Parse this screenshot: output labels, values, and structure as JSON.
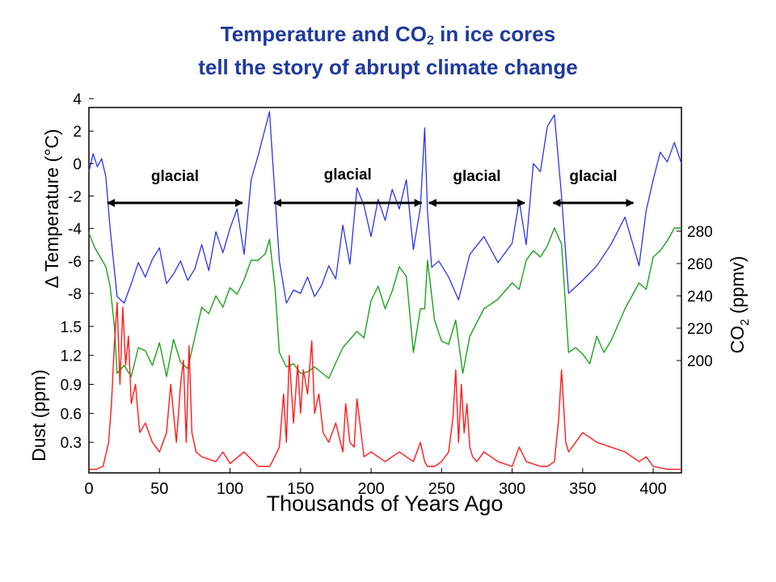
{
  "title": {
    "line1_prefix": "Temperature and CO",
    "line1_sub": "2",
    "line1_suffix": " in ice cores",
    "line2": "tell the story of abrupt climate change"
  },
  "chart_data": {
    "type": "line",
    "xlabel": "Thousands of Years Ago",
    "x_ticks": [
      0,
      50,
      100,
      150,
      200,
      250,
      300,
      350,
      400
    ],
    "xlim": [
      0,
      420
    ],
    "grid": false,
    "colors": {
      "temperature": "#2a35e8",
      "co2": "#1aa31a",
      "dust": "#ff1a1a",
      "title": "#1f3a9e",
      "arrows": "#000000"
    },
    "panels": {
      "temperature": {
        "ylabel": "Δ Temperature (°C)",
        "y_ticks": [
          4,
          2,
          0,
          -2,
          -4,
          -6,
          -8
        ],
        "ylim": [
          -9,
          4
        ],
        "axis_side": "left"
      },
      "co2": {
        "ylabel_main": "CO",
        "ylabel_sub": "2",
        "ylabel_unit": " (ppmv)",
        "y_ticks": [
          280,
          260,
          240,
          220,
          200
        ],
        "ylim": [
          180,
          290
        ],
        "axis_side": "right"
      },
      "dust": {
        "ylabel": "Dust (ppm)",
        "y_ticks": [
          1.5,
          1.2,
          0.9,
          0.6,
          0.3
        ],
        "ylim": [
          0,
          1.8
        ],
        "axis_side": "left"
      }
    },
    "annotations": [
      {
        "text": "glacial",
        "x_start": 12,
        "x_end": 110
      },
      {
        "text": "glacial",
        "x_start": 130,
        "x_end": 237
      },
      {
        "text": "glacial",
        "x_start": 240,
        "x_end": 310
      },
      {
        "text": "glacial",
        "x_start": 328,
        "x_end": 387
      }
    ],
    "series": [
      {
        "name": "Δ Temperature (°C)",
        "key": "temperature",
        "panel": "temperature",
        "x": [
          0,
          3,
          6,
          9,
          12,
          15,
          20,
          25,
          30,
          35,
          40,
          45,
          50,
          55,
          60,
          65,
          70,
          75,
          80,
          85,
          90,
          95,
          100,
          105,
          110,
          115,
          120,
          125,
          128,
          130,
          135,
          140,
          145,
          150,
          155,
          160,
          165,
          170,
          175,
          180,
          185,
          190,
          195,
          200,
          205,
          210,
          215,
          220,
          225,
          230,
          235,
          238,
          240,
          243,
          248,
          255,
          262,
          270,
          280,
          290,
          300,
          305,
          310,
          315,
          320,
          325,
          330,
          335,
          340,
          350,
          360,
          370,
          380,
          390,
          395,
          400,
          405,
          410,
          415,
          420
        ],
        "y": [
          -0.5,
          0.6,
          -0.2,
          0.3,
          -0.8,
          -4,
          -8.2,
          -8.6,
          -7.4,
          -6.1,
          -7.0,
          -5.9,
          -5.2,
          -7.4,
          -6.8,
          -6.0,
          -7.2,
          -6.5,
          -5.0,
          -6.6,
          -4.2,
          -5.5,
          -4.0,
          -2.8,
          -5.6,
          -1.0,
          0.5,
          2.2,
          3.2,
          0.5,
          -6.0,
          -8.6,
          -7.8,
          -8.0,
          -7.0,
          -8.2,
          -7.5,
          -6.3,
          -7.1,
          -3.8,
          -6.2,
          -1.5,
          -2.6,
          -4.5,
          -2.2,
          -3.5,
          -1.6,
          -2.8,
          -1.0,
          -5.3,
          -2.7,
          2.2,
          -3.0,
          -6.4,
          -6.0,
          -7.0,
          -8.4,
          -5.6,
          -4.5,
          -6.1,
          -4.9,
          -2.3,
          -5.0,
          0.0,
          -0.5,
          2.3,
          3.0,
          -2.0,
          -8.0,
          -7.2,
          -6.3,
          -5.0,
          -3.3,
          -6.3,
          -2.9,
          -1.0,
          0.7,
          0.1,
          1.3,
          0.0
        ]
      },
      {
        "name": "CO₂ (ppmv)",
        "key": "co2",
        "panel": "co2",
        "x": [
          0,
          4,
          8,
          12,
          15,
          18,
          20,
          25,
          30,
          35,
          40,
          45,
          50,
          55,
          60,
          65,
          70,
          75,
          80,
          85,
          90,
          95,
          100,
          105,
          110,
          115,
          120,
          125,
          128,
          132,
          135,
          140,
          145,
          150,
          155,
          160,
          170,
          180,
          190,
          195,
          200,
          205,
          210,
          215,
          220,
          225,
          230,
          235,
          238,
          240,
          245,
          250,
          255,
          260,
          265,
          270,
          280,
          290,
          300,
          305,
          310,
          315,
          320,
          325,
          330,
          335,
          340,
          345,
          350,
          355,
          360,
          365,
          370,
          380,
          390,
          395,
          400,
          405,
          410,
          415,
          420
        ],
        "y": [
          279,
          270,
          264,
          258,
          246,
          222,
          192,
          197,
          190,
          208,
          206,
          197,
          211,
          190,
          213,
          199,
          195,
          214,
          233,
          229,
          240,
          233,
          245,
          241,
          250,
          262,
          262,
          266,
          275,
          244,
          205,
          196,
          198,
          192,
          193,
          196,
          189,
          208,
          218,
          214,
          237,
          246,
          232,
          243,
          258,
          252,
          205,
          232,
          232,
          262,
          225,
          212,
          210,
          225,
          192,
          215,
          232,
          238,
          248,
          244,
          262,
          268,
          264,
          271,
          282,
          272,
          205,
          208,
          204,
          198,
          215,
          205,
          212,
          232,
          248,
          244,
          264,
          268,
          274,
          282,
          282
        ]
      },
      {
        "name": "Dust (ppm)",
        "key": "dust",
        "panel": "dust",
        "x": [
          0,
          5,
          10,
          14,
          16,
          18,
          20,
          22,
          24,
          26,
          28,
          30,
          33,
          36,
          40,
          45,
          50,
          55,
          58,
          62,
          65,
          67,
          69,
          71,
          73,
          76,
          80,
          90,
          95,
          100,
          110,
          120,
          128,
          130,
          135,
          138,
          140,
          142,
          145,
          148,
          150,
          152,
          155,
          158,
          160,
          163,
          166,
          170,
          175,
          180,
          182,
          185,
          188,
          190,
          195,
          200,
          210,
          220,
          225,
          230,
          235,
          238,
          240,
          245,
          250,
          255,
          258,
          260,
          262,
          264,
          266,
          268,
          270,
          272,
          275,
          280,
          290,
          300,
          305,
          310,
          320,
          325,
          330,
          333,
          335,
          338,
          340,
          345,
          350,
          355,
          360,
          370,
          380,
          390,
          395,
          400,
          410,
          420
        ],
        "y": [
          0.02,
          0.02,
          0.05,
          0.3,
          0.7,
          1.3,
          1.75,
          0.9,
          1.7,
          1.1,
          1.4,
          0.7,
          0.9,
          0.4,
          0.5,
          0.3,
          0.2,
          0.4,
          0.9,
          0.3,
          0.9,
          1.15,
          0.3,
          1.3,
          0.4,
          0.2,
          0.15,
          0.1,
          0.2,
          0.08,
          0.2,
          0.05,
          0.05,
          0.1,
          0.25,
          0.8,
          0.3,
          1.2,
          0.5,
          1.1,
          0.6,
          1.05,
          0.8,
          1.35,
          0.6,
          0.8,
          0.4,
          0.3,
          0.5,
          0.2,
          0.7,
          0.3,
          0.25,
          0.75,
          0.15,
          0.2,
          0.1,
          0.2,
          0.15,
          0.1,
          0.3,
          0.1,
          0.05,
          0.05,
          0.1,
          0.2,
          0.55,
          1.05,
          0.3,
          0.9,
          0.4,
          0.7,
          0.25,
          0.15,
          0.1,
          0.2,
          0.1,
          0.05,
          0.25,
          0.1,
          0.05,
          0.05,
          0.1,
          0.55,
          1.05,
          0.3,
          0.2,
          0.3,
          0.4,
          0.35,
          0.3,
          0.25,
          0.2,
          0.1,
          0.15,
          0.05,
          0.02,
          0.02
        ]
      }
    ]
  }
}
